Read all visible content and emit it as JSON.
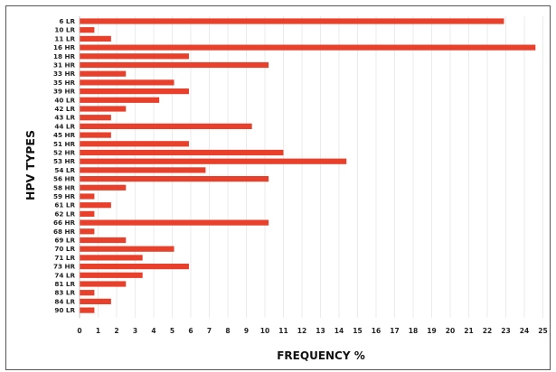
{
  "chart_data": {
    "type": "bar",
    "orientation": "horizontal",
    "title": "",
    "xlabel": "FREQUENCY %",
    "ylabel": "HPV TYPES",
    "xlim": [
      0,
      25
    ],
    "grid": true,
    "legend": "none",
    "bar_color": "#e8402a",
    "categories": [
      "6 LR",
      "10 LR",
      "11 LR",
      "16 HR",
      "18 HR",
      "31 HR",
      "33 HR",
      "35 HR",
      "39 HR",
      "40 LR",
      "42 LR",
      "43 LR",
      "44 LR",
      "45 HR",
      "51 HR",
      "52 HR",
      "53 HR",
      "54 LR",
      "56 HR",
      "58 HR",
      "59 HR",
      "61 LR",
      "62 LR",
      "66 HR",
      "68 HR",
      "69 LR",
      "70 LR",
      "71 LR",
      "73 HR",
      "74 LR",
      "81 LR",
      "83 LR",
      "84 LR",
      "90 LR"
    ],
    "values": [
      22.9,
      0.8,
      1.7,
      24.6,
      5.9,
      10.2,
      2.5,
      5.1,
      5.9,
      4.3,
      2.5,
      1.7,
      9.3,
      1.7,
      5.9,
      11.0,
      14.4,
      6.8,
      10.2,
      2.5,
      0.8,
      1.7,
      0.8,
      10.2,
      0.8,
      2.5,
      5.1,
      3.4,
      5.9,
      3.4,
      2.5,
      0.8,
      1.7,
      0.8
    ],
    "ticks": [
      "0",
      "1",
      "2",
      "3",
      "4",
      "5",
      "6",
      "7",
      "8",
      "9",
      "10",
      "11",
      "12",
      "13",
      "14",
      "15",
      "16",
      "17",
      "18",
      "19",
      "20",
      "21",
      "22",
      "23",
      "24",
      "25"
    ]
  }
}
